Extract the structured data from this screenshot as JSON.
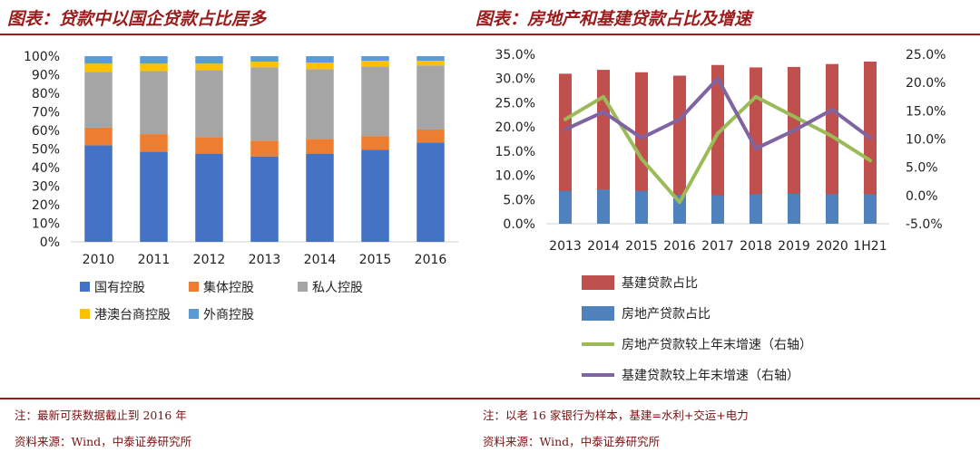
{
  "left": {
    "title": "图表：贷款中以国企贷款占比居多",
    "note": "注：最新可获数据截止到 2016 年",
    "source": "资料来源：Wind，中泰证券研究所"
  },
  "right": {
    "title": "图表：房地产和基建贷款占比及增速",
    "note": "注：以老 16 家银行为样本，基建=水利+交运+电力",
    "source": "资料来源：Wind，中泰证券研究所"
  },
  "chart_data": [
    {
      "type": "bar",
      "stacked": true,
      "categories": [
        "2010",
        "2011",
        "2012",
        "2013",
        "2014",
        "2015",
        "2016"
      ],
      "y_ticks": [
        "0%",
        "10%",
        "20%",
        "30%",
        "40%",
        "50%",
        "60%",
        "70%",
        "80%",
        "90%",
        "100%"
      ],
      "ylim": [
        0,
        100
      ],
      "legend_position": "bottom",
      "series": [
        {
          "name": "国有控股",
          "color": "#4472c4",
          "values": [
            52,
            48.5,
            47.5,
            46,
            47.5,
            49.5,
            53.5
          ]
        },
        {
          "name": "集体控股",
          "color": "#ed7d31",
          "values": [
            9.5,
            9.5,
            9,
            8.5,
            8,
            7.5,
            7
          ]
        },
        {
          "name": "私人控股",
          "color": "#a5a5a5",
          "values": [
            30,
            34,
            36,
            39.5,
            37.5,
            37.5,
            34.5
          ]
        },
        {
          "name": "港澳台商控股",
          "color": "#ffc000",
          "values": [
            4.5,
            4,
            3.5,
            3,
            3.5,
            3,
            2.5
          ]
        },
        {
          "name": "外商控股",
          "color": "#5b9bd5",
          "values": [
            4,
            4,
            4,
            3,
            3.5,
            2.5,
            2.5
          ]
        }
      ]
    },
    {
      "type": "bar+line",
      "categories": [
        "2013",
        "2014",
        "2015",
        "2016",
        "2017",
        "2018",
        "2019",
        "2020",
        "1H21"
      ],
      "y_left_ticks": [
        "0.0%",
        "5.0%",
        "10.0%",
        "15.0%",
        "20.0%",
        "25.0%",
        "30.0%",
        "35.0%"
      ],
      "y_right_ticks": [
        "-5.0%",
        "0.0%",
        "5.0%",
        "10.0%",
        "15.0%",
        "20.0%",
        "25.0%"
      ],
      "ylim_left": [
        0,
        35
      ],
      "ylim_right": [
        -5,
        25
      ],
      "legend_position": "bottom",
      "series": [
        {
          "name": "基建贷款占比",
          "kind": "bar",
          "axis": "left",
          "color": "#c0504d",
          "values": [
            31,
            31.8,
            31.3,
            30.6,
            32.8,
            32.3,
            32.4,
            33,
            33.5
          ]
        },
        {
          "name": "房地产贷款占比",
          "kind": "bar",
          "axis": "left",
          "color": "#4f81bd",
          "values": [
            6.8,
            7.1,
            6.8,
            6,
            5.9,
            6.1,
            6.2,
            6.1,
            6.1
          ]
        },
        {
          "name": "房地产贷款较上年末增速（右轴）",
          "kind": "line",
          "axis": "right",
          "color": "#9bbb59",
          "values": [
            13.5,
            17.5,
            6.5,
            -1.2,
            11,
            17.5,
            14,
            10.5,
            6.2
          ]
        },
        {
          "name": "基建贷款较上年末增速（右轴）",
          "kind": "line",
          "axis": "right",
          "color": "#8064a2",
          "values": [
            11.7,
            14.8,
            10.2,
            13.5,
            20.7,
            8.3,
            11.5,
            15.2,
            10.2
          ]
        }
      ]
    }
  ]
}
